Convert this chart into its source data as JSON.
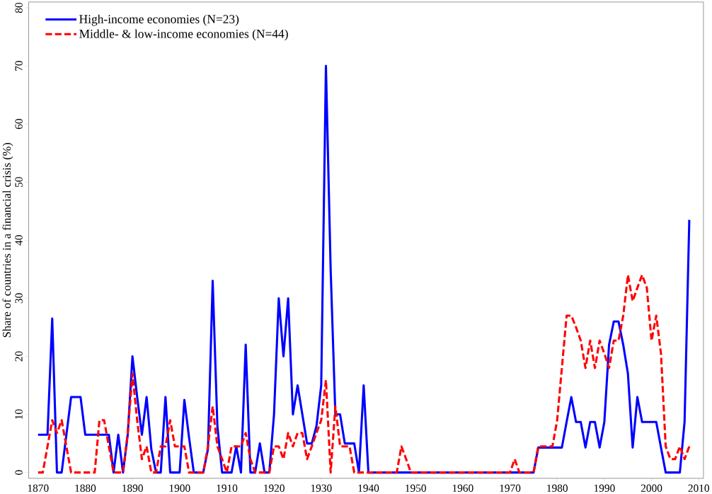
{
  "chart_data": {
    "type": "line",
    "ylabel": "Share of countries in a financial crisis (%)",
    "x": [
      1870,
      1871,
      1872,
      1873,
      1874,
      1875,
      1876,
      1877,
      1878,
      1879,
      1880,
      1881,
      1882,
      1883,
      1884,
      1885,
      1886,
      1887,
      1888,
      1889,
      1890,
      1891,
      1892,
      1893,
      1894,
      1895,
      1896,
      1897,
      1898,
      1899,
      1900,
      1901,
      1902,
      1903,
      1904,
      1905,
      1906,
      1907,
      1908,
      1909,
      1910,
      1911,
      1912,
      1913,
      1914,
      1915,
      1916,
      1917,
      1918,
      1919,
      1920,
      1921,
      1922,
      1923,
      1924,
      1925,
      1926,
      1927,
      1928,
      1929,
      1930,
      1931,
      1932,
      1933,
      1934,
      1935,
      1936,
      1937,
      1938,
      1939,
      1940,
      1941,
      1942,
      1943,
      1944,
      1945,
      1946,
      1947,
      1948,
      1949,
      1950,
      1951,
      1952,
      1953,
      1954,
      1955,
      1956,
      1957,
      1958,
      1959,
      1960,
      1961,
      1962,
      1963,
      1964,
      1965,
      1966,
      1967,
      1968,
      1969,
      1970,
      1971,
      1972,
      1973,
      1974,
      1975,
      1976,
      1977,
      1978,
      1979,
      1980,
      1981,
      1982,
      1983,
      1984,
      1985,
      1986,
      1987,
      1988,
      1989,
      1990,
      1991,
      1992,
      1993,
      1994,
      1995,
      1996,
      1997,
      1998,
      1999,
      2000,
      2001,
      2002,
      2003,
      2004,
      2005,
      2006,
      2007,
      2008
    ],
    "series": [
      {
        "name": "High-income economies (N=23)",
        "color": "#0000ff",
        "line_style": "solid",
        "values": [
          6.5,
          6.5,
          6.5,
          26.5,
          0,
          0,
          6.5,
          13,
          13,
          13,
          6.5,
          6.5,
          6.5,
          6.5,
          6.5,
          6.5,
          0,
          6.5,
          0,
          6.5,
          20,
          13,
          6.5,
          13,
          4,
          0,
          0,
          13,
          0,
          0,
          0,
          12.5,
          6,
          0,
          0,
          0,
          4,
          33,
          8,
          0,
          0,
          0,
          4.5,
          0,
          22,
          0,
          0,
          5,
          0,
          0,
          10,
          30,
          20,
          30,
          10,
          15,
          10,
          5,
          5,
          8,
          15,
          70,
          35,
          10,
          10,
          5,
          5,
          5,
          0,
          15,
          0,
          0,
          0,
          0,
          0,
          0,
          0,
          0,
          0,
          0,
          0,
          0,
          0,
          0,
          0,
          0,
          0,
          0,
          0,
          0,
          0,
          0,
          0,
          0,
          0,
          0,
          0,
          0,
          0,
          0,
          0,
          0,
          0,
          0,
          0,
          0,
          4.3,
          4.3,
          4.3,
          4.3,
          4.3,
          4.3,
          8.7,
          13,
          8.7,
          8.7,
          4.3,
          8.7,
          8.7,
          4.3,
          8.7,
          22,
          26,
          26,
          22,
          17,
          4.3,
          13,
          8.7,
          8.7,
          8.7,
          8.7,
          4.3,
          0,
          0,
          0,
          0,
          8.7,
          43.5
        ]
      },
      {
        "name": "Middle- & low-income economies (N=44)",
        "color": "#ff0000",
        "line_style": "dashed",
        "values": [
          0,
          0,
          4.5,
          9,
          6.8,
          9,
          4.5,
          0,
          0,
          0,
          0,
          0,
          0,
          9,
          9,
          4.5,
          0,
          0,
          0,
          6.8,
          17,
          9,
          2.3,
          4.5,
          0,
          0,
          4.5,
          4.5,
          9,
          4.5,
          4.5,
          4.5,
          0,
          0,
          0,
          0,
          4.5,
          11.4,
          4.5,
          2.3,
          0,
          4.5,
          4.5,
          4.5,
          6.8,
          2.3,
          0,
          0,
          0,
          0,
          4.5,
          4.5,
          2.3,
          6.8,
          4.5,
          6.8,
          6.8,
          2.3,
          4.5,
          6.8,
          9,
          15.9,
          0,
          11.4,
          4.5,
          4.5,
          4.5,
          0,
          0,
          0,
          0,
          0,
          0,
          0,
          0,
          0,
          0,
          4.5,
          2.3,
          0,
          0,
          0,
          0,
          0,
          0,
          0,
          0,
          0,
          0,
          0,
          0,
          0,
          0,
          0,
          0,
          0,
          0,
          0,
          0,
          0,
          0,
          2.3,
          0,
          0,
          0,
          0,
          4.5,
          4.5,
          4.5,
          4.5,
          9,
          18,
          27,
          27,
          25,
          22.7,
          18,
          22.7,
          18,
          22.7,
          20.5,
          18,
          22.7,
          22.7,
          27,
          34,
          29.5,
          31.8,
          34,
          31.8,
          22.7,
          27,
          20.5,
          4.5,
          2.3,
          2.3,
          4.5,
          2.3,
          4.5
        ]
      }
    ],
    "xlim": [
      1868,
      2011
    ],
    "ylim": [
      -1,
      81
    ],
    "xticks": [
      1870,
      1880,
      1890,
      1900,
      1910,
      1920,
      1930,
      1940,
      1950,
      1960,
      1970,
      1980,
      1990,
      2000,
      2010
    ],
    "yticks": [
      0,
      10,
      20,
      30,
      40,
      50,
      60,
      70,
      80
    ],
    "grid": false,
    "legend": "top left",
    "marker": "none"
  }
}
